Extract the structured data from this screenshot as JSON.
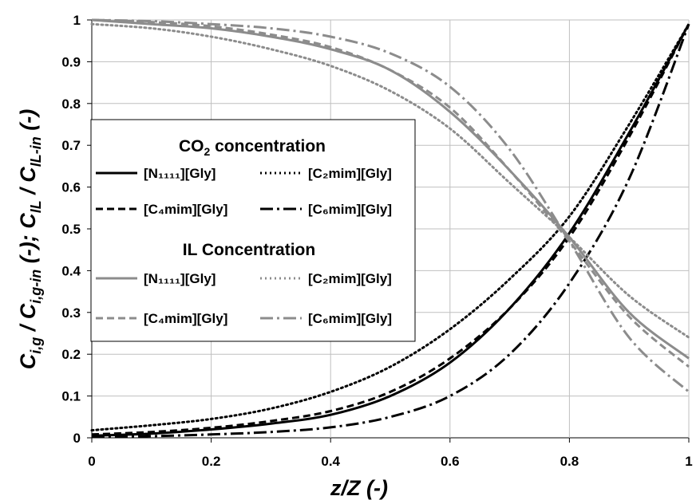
{
  "chart_data": {
    "type": "line",
    "xlabel": {
      "pre": "z/Z (-)"
    },
    "ylabel": {
      "a": "C",
      "a_sub": "i,g",
      "b": " / C",
      "b_sub": "i,g-in",
      "c": " (-); C",
      "c_sub": "IL",
      "d": " / C",
      "d_sub": "IL-in",
      "e": " (-)"
    },
    "xlim": [
      0,
      1
    ],
    "ylim": [
      0,
      1
    ],
    "x_ticks": [
      "0",
      "0.2",
      "0.4",
      "0.6",
      "0.8",
      "1"
    ],
    "y_ticks": [
      "0",
      "0.1",
      "0.2",
      "0.3",
      "0.4",
      "0.5",
      "0.6",
      "0.7",
      "0.8",
      "0.9",
      "1"
    ],
    "grid": true,
    "legend_position": "left-middle",
    "legend": {
      "co2_heading": "CO",
      "co2_heading_sub": "2",
      "co2_heading_post": " concentration",
      "il_heading": "IL Concentration"
    },
    "series": [
      {
        "group": "co2",
        "name": "[N₁₁₁₁][Gly]",
        "color": "#000000",
        "dash": "solid",
        "x": [
          0,
          0.1,
          0.2,
          0.3,
          0.4,
          0.5,
          0.6,
          0.7,
          0.8,
          0.9,
          1.0
        ],
        "y": [
          0.005,
          0.01,
          0.02,
          0.034,
          0.055,
          0.1,
          0.18,
          0.31,
          0.49,
          0.73,
          0.99
        ]
      },
      {
        "group": "co2",
        "name": "[C₂mim][Gly]",
        "color": "#000000",
        "dash": "dot",
        "x": [
          0,
          0.1,
          0.2,
          0.3,
          0.4,
          0.5,
          0.6,
          0.7,
          0.8,
          0.9,
          1.0
        ],
        "y": [
          0.018,
          0.03,
          0.045,
          0.07,
          0.11,
          0.17,
          0.26,
          0.38,
          0.53,
          0.75,
          0.99
        ]
      },
      {
        "group": "co2",
        "name": "[C₄mim][Gly]",
        "color": "#000000",
        "dash": "dash",
        "x": [
          0,
          0.1,
          0.2,
          0.3,
          0.4,
          0.5,
          0.6,
          0.7,
          0.8,
          0.9,
          1.0
        ],
        "y": [
          0.008,
          0.014,
          0.024,
          0.04,
          0.064,
          0.11,
          0.19,
          0.31,
          0.48,
          0.72,
          0.99
        ]
      },
      {
        "group": "co2",
        "name": "[C₆mim][Gly]",
        "color": "#000000",
        "dash": "dashdot",
        "x": [
          0,
          0.1,
          0.2,
          0.3,
          0.4,
          0.5,
          0.6,
          0.7,
          0.8,
          0.9,
          1.0
        ],
        "y": [
          0.002,
          0.004,
          0.008,
          0.014,
          0.025,
          0.05,
          0.1,
          0.2,
          0.37,
          0.62,
          0.99
        ]
      },
      {
        "group": "il",
        "name": "[N₁₁₁₁][Gly]",
        "color": "#8c8c8c",
        "dash": "solid",
        "x": [
          0,
          0.1,
          0.2,
          0.3,
          0.4,
          0.5,
          0.6,
          0.7,
          0.8,
          0.9,
          1.0
        ],
        "y": [
          1.0,
          0.99,
          0.98,
          0.96,
          0.93,
          0.88,
          0.78,
          0.64,
          0.48,
          0.3,
          0.19
        ]
      },
      {
        "group": "il",
        "name": "[C₂mim][Gly]",
        "color": "#8c8c8c",
        "dash": "dot",
        "x": [
          0,
          0.1,
          0.2,
          0.3,
          0.4,
          0.5,
          0.6,
          0.7,
          0.8,
          0.9,
          1.0
        ],
        "y": [
          0.99,
          0.98,
          0.96,
          0.93,
          0.89,
          0.83,
          0.74,
          0.61,
          0.48,
          0.34,
          0.24
        ]
      },
      {
        "group": "il",
        "name": "[C₄mim][Gly]",
        "color": "#8c8c8c",
        "dash": "dash",
        "x": [
          0,
          0.1,
          0.2,
          0.3,
          0.4,
          0.5,
          0.6,
          0.7,
          0.8,
          0.9,
          1.0
        ],
        "y": [
          1.0,
          0.995,
          0.985,
          0.965,
          0.935,
          0.88,
          0.79,
          0.64,
          0.47,
          0.29,
          0.17
        ]
      },
      {
        "group": "il",
        "name": "[C₆mim][Gly]",
        "color": "#8c8c8c",
        "dash": "dashdot",
        "x": [
          0,
          0.1,
          0.2,
          0.3,
          0.4,
          0.5,
          0.6,
          0.7,
          0.8,
          0.9,
          1.0
        ],
        "y": [
          1.0,
          0.997,
          0.99,
          0.98,
          0.96,
          0.92,
          0.84,
          0.69,
          0.47,
          0.24,
          0.11
        ]
      }
    ]
  }
}
